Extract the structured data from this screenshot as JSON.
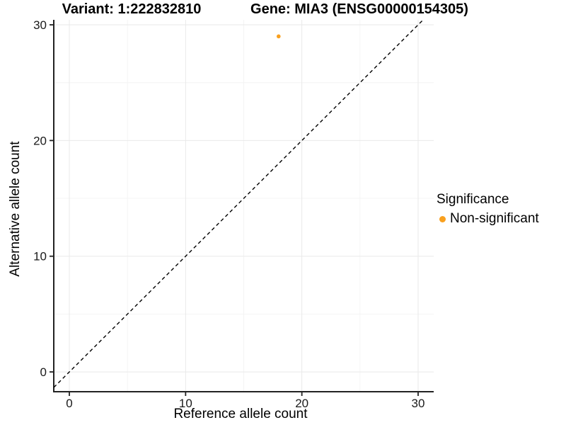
{
  "chart_data": {
    "type": "scatter",
    "titles": {
      "variant": "Variant: 1:222832810",
      "gene": "Gene: MIA3 (ENSG00000154305)"
    },
    "xlabel": "Reference allele count",
    "ylabel": "Alternative allele count",
    "x_ticks": [
      0,
      10,
      20,
      30
    ],
    "y_ticks": [
      0,
      10,
      20,
      30
    ],
    "x_minor_gridlines": [
      5,
      15,
      25
    ],
    "y_minor_gridlines": [
      5,
      15,
      25
    ],
    "xlim": [
      -1.34,
      31.34
    ],
    "ylim": [
      -1.71,
      30.43
    ],
    "grid": true,
    "legend_position": "right",
    "identity_line": {
      "slope": 1,
      "intercept": 0,
      "style": "dashed",
      "color": "#000000"
    },
    "series": [
      {
        "name": "Non-significant",
        "color": "#F9A01E",
        "points": [
          {
            "x": 18,
            "y": 29
          }
        ]
      }
    ],
    "legend": {
      "title": "Significance",
      "entries": [
        {
          "label": "Non-significant",
          "color": "#F9A01E"
        }
      ]
    },
    "colors": {
      "grid_major": "#E9E9E9",
      "grid_minor": "#F4F4F4",
      "axis": "#222222",
      "tick_text": "#1a1a1a",
      "background": "#FFFFFF"
    }
  }
}
